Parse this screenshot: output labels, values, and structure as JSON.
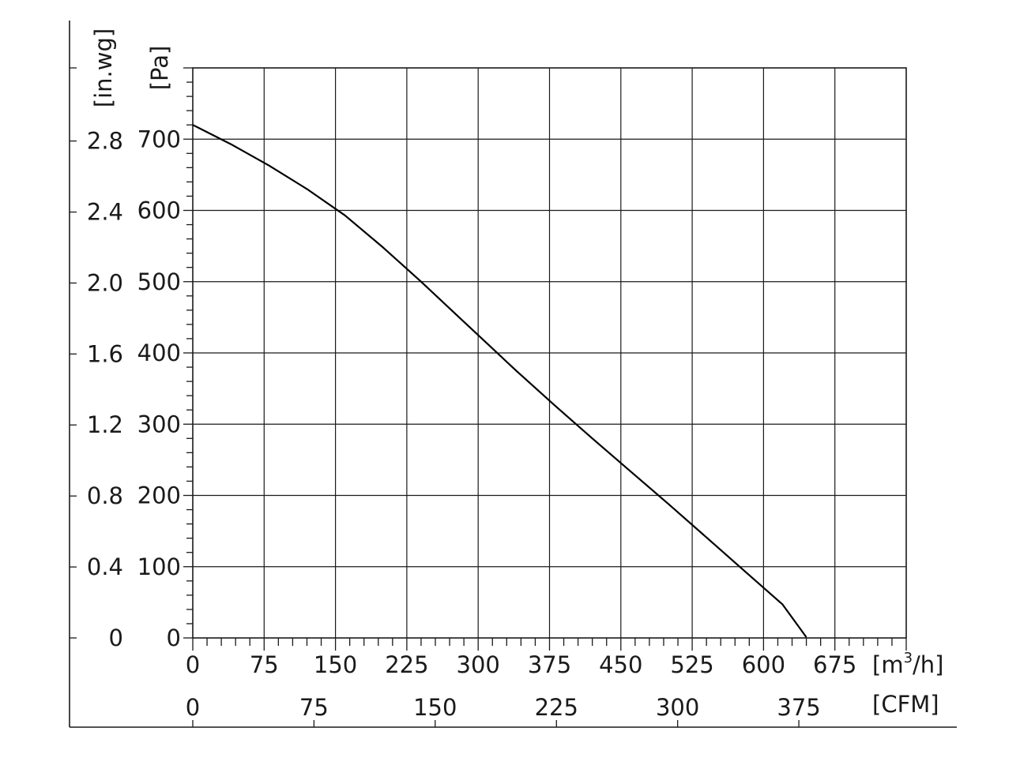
{
  "chart_data": {
    "type": "line",
    "title": "",
    "x_primary": {
      "unit_label": "[m",
      "unit_sup": "3",
      "unit_tail": "/h]",
      "ticks": [
        "0",
        "75",
        "150",
        "225",
        "300",
        "375",
        "450",
        "525",
        "600",
        "675"
      ],
      "range": [
        0,
        750
      ]
    },
    "x_secondary": {
      "unit_label": "[CFM]",
      "ticks": [
        "0",
        "75",
        "150",
        "225",
        "300",
        "375"
      ],
      "tick_values_m3h": [
        0,
        127.4,
        254.8,
        382.3,
        509.7,
        637.1
      ]
    },
    "y_primary": {
      "unit_label": "[Pa]",
      "ticks": [
        "0",
        "100",
        "200",
        "300",
        "400",
        "500",
        "600",
        "700"
      ],
      "range": [
        0,
        800
      ]
    },
    "y_secondary": {
      "unit_label": "[in.wg]",
      "ticks": [
        "0",
        "0.4",
        "0.8",
        "1.2",
        "1.6",
        "2.0",
        "2.4",
        "2.8"
      ],
      "tick_values_pa": [
        0,
        99.6,
        199.2,
        298.9,
        398.5,
        498.1,
        597.7,
        697.4
      ]
    },
    "grid": true,
    "series": [
      {
        "points": [
          [
            0,
            720
          ],
          [
            40,
            693
          ],
          [
            80,
            663
          ],
          [
            120,
            630
          ],
          [
            160,
            593
          ],
          [
            200,
            548
          ],
          [
            240,
            500
          ],
          [
            280,
            450
          ],
          [
            300,
            425
          ],
          [
            340,
            375
          ],
          [
            380,
            327
          ],
          [
            420,
            280
          ],
          [
            460,
            234
          ],
          [
            500,
            188
          ],
          [
            540,
            141
          ],
          [
            580,
            94
          ],
          [
            620,
            47
          ],
          [
            645,
            1
          ]
        ]
      }
    ]
  }
}
